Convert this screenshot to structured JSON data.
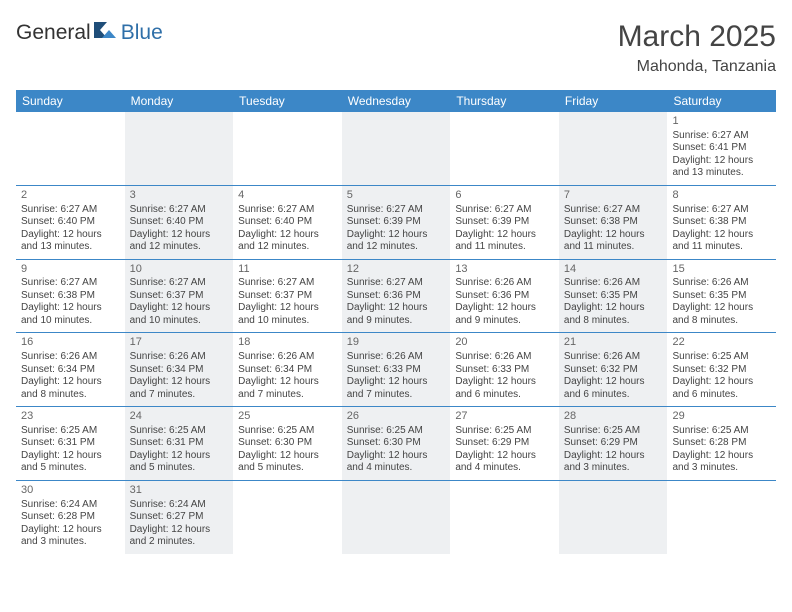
{
  "brand": {
    "name1": "General",
    "name2": "Blue"
  },
  "title": "March 2025",
  "location": "Mahonda, Tanzania",
  "colors": {
    "header_bg": "#3c87c7",
    "alt_bg": "#eef0f2",
    "rule": "#3c87c7"
  },
  "weekdays": [
    "Sunday",
    "Monday",
    "Tuesday",
    "Wednesday",
    "Thursday",
    "Friday",
    "Saturday"
  ],
  "weeks": [
    [
      null,
      null,
      null,
      null,
      null,
      null,
      {
        "n": "1",
        "sr": "Sunrise: 6:27 AM",
        "ss": "Sunset: 6:41 PM",
        "d1": "Daylight: 12 hours",
        "d2": "and 13 minutes."
      }
    ],
    [
      {
        "n": "2",
        "sr": "Sunrise: 6:27 AM",
        "ss": "Sunset: 6:40 PM",
        "d1": "Daylight: 12 hours",
        "d2": "and 13 minutes."
      },
      {
        "n": "3",
        "sr": "Sunrise: 6:27 AM",
        "ss": "Sunset: 6:40 PM",
        "d1": "Daylight: 12 hours",
        "d2": "and 12 minutes."
      },
      {
        "n": "4",
        "sr": "Sunrise: 6:27 AM",
        "ss": "Sunset: 6:40 PM",
        "d1": "Daylight: 12 hours",
        "d2": "and 12 minutes."
      },
      {
        "n": "5",
        "sr": "Sunrise: 6:27 AM",
        "ss": "Sunset: 6:39 PM",
        "d1": "Daylight: 12 hours",
        "d2": "and 12 minutes."
      },
      {
        "n": "6",
        "sr": "Sunrise: 6:27 AM",
        "ss": "Sunset: 6:39 PM",
        "d1": "Daylight: 12 hours",
        "d2": "and 11 minutes."
      },
      {
        "n": "7",
        "sr": "Sunrise: 6:27 AM",
        "ss": "Sunset: 6:38 PM",
        "d1": "Daylight: 12 hours",
        "d2": "and 11 minutes."
      },
      {
        "n": "8",
        "sr": "Sunrise: 6:27 AM",
        "ss": "Sunset: 6:38 PM",
        "d1": "Daylight: 12 hours",
        "d2": "and 11 minutes."
      }
    ],
    [
      {
        "n": "9",
        "sr": "Sunrise: 6:27 AM",
        "ss": "Sunset: 6:38 PM",
        "d1": "Daylight: 12 hours",
        "d2": "and 10 minutes."
      },
      {
        "n": "10",
        "sr": "Sunrise: 6:27 AM",
        "ss": "Sunset: 6:37 PM",
        "d1": "Daylight: 12 hours",
        "d2": "and 10 minutes."
      },
      {
        "n": "11",
        "sr": "Sunrise: 6:27 AM",
        "ss": "Sunset: 6:37 PM",
        "d1": "Daylight: 12 hours",
        "d2": "and 10 minutes."
      },
      {
        "n": "12",
        "sr": "Sunrise: 6:27 AM",
        "ss": "Sunset: 6:36 PM",
        "d1": "Daylight: 12 hours",
        "d2": "and 9 minutes."
      },
      {
        "n": "13",
        "sr": "Sunrise: 6:26 AM",
        "ss": "Sunset: 6:36 PM",
        "d1": "Daylight: 12 hours",
        "d2": "and 9 minutes."
      },
      {
        "n": "14",
        "sr": "Sunrise: 6:26 AM",
        "ss": "Sunset: 6:35 PM",
        "d1": "Daylight: 12 hours",
        "d2": "and 8 minutes."
      },
      {
        "n": "15",
        "sr": "Sunrise: 6:26 AM",
        "ss": "Sunset: 6:35 PM",
        "d1": "Daylight: 12 hours",
        "d2": "and 8 minutes."
      }
    ],
    [
      {
        "n": "16",
        "sr": "Sunrise: 6:26 AM",
        "ss": "Sunset: 6:34 PM",
        "d1": "Daylight: 12 hours",
        "d2": "and 8 minutes."
      },
      {
        "n": "17",
        "sr": "Sunrise: 6:26 AM",
        "ss": "Sunset: 6:34 PM",
        "d1": "Daylight: 12 hours",
        "d2": "and 7 minutes."
      },
      {
        "n": "18",
        "sr": "Sunrise: 6:26 AM",
        "ss": "Sunset: 6:34 PM",
        "d1": "Daylight: 12 hours",
        "d2": "and 7 minutes."
      },
      {
        "n": "19",
        "sr": "Sunrise: 6:26 AM",
        "ss": "Sunset: 6:33 PM",
        "d1": "Daylight: 12 hours",
        "d2": "and 7 minutes."
      },
      {
        "n": "20",
        "sr": "Sunrise: 6:26 AM",
        "ss": "Sunset: 6:33 PM",
        "d1": "Daylight: 12 hours",
        "d2": "and 6 minutes."
      },
      {
        "n": "21",
        "sr": "Sunrise: 6:26 AM",
        "ss": "Sunset: 6:32 PM",
        "d1": "Daylight: 12 hours",
        "d2": "and 6 minutes."
      },
      {
        "n": "22",
        "sr": "Sunrise: 6:25 AM",
        "ss": "Sunset: 6:32 PM",
        "d1": "Daylight: 12 hours",
        "d2": "and 6 minutes."
      }
    ],
    [
      {
        "n": "23",
        "sr": "Sunrise: 6:25 AM",
        "ss": "Sunset: 6:31 PM",
        "d1": "Daylight: 12 hours",
        "d2": "and 5 minutes."
      },
      {
        "n": "24",
        "sr": "Sunrise: 6:25 AM",
        "ss": "Sunset: 6:31 PM",
        "d1": "Daylight: 12 hours",
        "d2": "and 5 minutes."
      },
      {
        "n": "25",
        "sr": "Sunrise: 6:25 AM",
        "ss": "Sunset: 6:30 PM",
        "d1": "Daylight: 12 hours",
        "d2": "and 5 minutes."
      },
      {
        "n": "26",
        "sr": "Sunrise: 6:25 AM",
        "ss": "Sunset: 6:30 PM",
        "d1": "Daylight: 12 hours",
        "d2": "and 4 minutes."
      },
      {
        "n": "27",
        "sr": "Sunrise: 6:25 AM",
        "ss": "Sunset: 6:29 PM",
        "d1": "Daylight: 12 hours",
        "d2": "and 4 minutes."
      },
      {
        "n": "28",
        "sr": "Sunrise: 6:25 AM",
        "ss": "Sunset: 6:29 PM",
        "d1": "Daylight: 12 hours",
        "d2": "and 3 minutes."
      },
      {
        "n": "29",
        "sr": "Sunrise: 6:25 AM",
        "ss": "Sunset: 6:28 PM",
        "d1": "Daylight: 12 hours",
        "d2": "and 3 minutes."
      }
    ],
    [
      {
        "n": "30",
        "sr": "Sunrise: 6:24 AM",
        "ss": "Sunset: 6:28 PM",
        "d1": "Daylight: 12 hours",
        "d2": "and 3 minutes."
      },
      {
        "n": "31",
        "sr": "Sunrise: 6:24 AM",
        "ss": "Sunset: 6:27 PM",
        "d1": "Daylight: 12 hours",
        "d2": "and 2 minutes."
      },
      null,
      null,
      null,
      null,
      null
    ]
  ]
}
